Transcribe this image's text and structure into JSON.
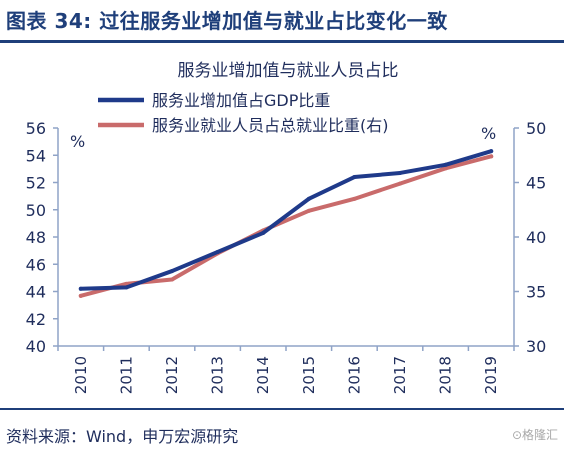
{
  "header": {
    "title": "图表 34: 过往服务业增加值与就业占比变化一致"
  },
  "footer": {
    "source": "资料来源：Wind，申万宏源研究",
    "watermark": "⊙格隆汇"
  },
  "chart_data": {
    "type": "line",
    "title": "服务业增加值与就业人员占比",
    "categories": [
      "2010",
      "2011",
      "2012",
      "2013",
      "2014",
      "2015",
      "2016",
      "2017",
      "2018",
      "2019"
    ],
    "series": [
      {
        "name": "服务业增加值占GDP比重",
        "axis": "left",
        "color": "#1f3a8a",
        "values": [
          44.2,
          44.3,
          45.5,
          46.9,
          48.3,
          50.8,
          52.4,
          52.7,
          53.3,
          54.3
        ]
      },
      {
        "name": "服务业就业人员占总就业比重(右)",
        "axis": "right",
        "color": "#c96b6b",
        "values": [
          34.6,
          35.7,
          36.1,
          38.5,
          40.6,
          42.4,
          43.5,
          44.9,
          46.3,
          47.4
        ]
      }
    ],
    "y_left": {
      "unit": "%",
      "min": 40,
      "max": 56,
      "ticks": [
        "40",
        "42",
        "44",
        "46",
        "48",
        "50",
        "52",
        "54",
        "56"
      ]
    },
    "y_right": {
      "unit": "%",
      "min": 30,
      "max": 50,
      "ticks": [
        "30",
        "35",
        "40",
        "45",
        "50"
      ]
    },
    "legend": "top-left",
    "grid": false
  }
}
